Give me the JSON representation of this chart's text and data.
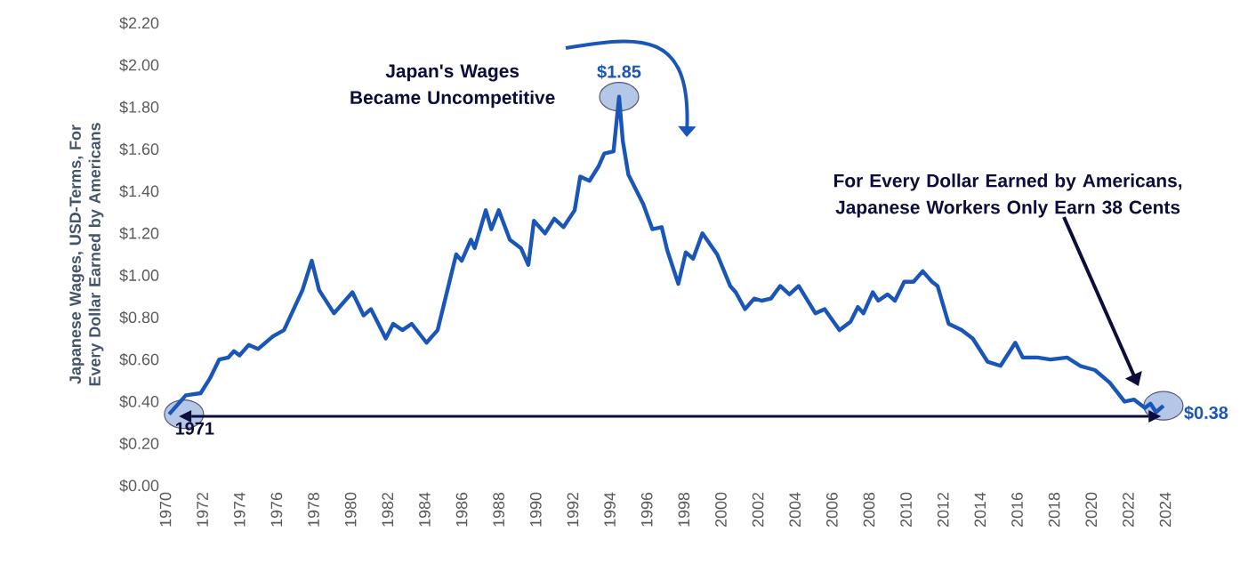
{
  "chart_data": {
    "type": "line",
    "ylabel": "Japanese Wages, USD-Terms, For Every Dollar Earned by Americans",
    "x": [
      1970.2,
      1971.1,
      1971.9,
      1972.4,
      1972.9,
      1973.4,
      1973.7,
      1974.0,
      1974.5,
      1975.0,
      1975.8,
      1976.4,
      1977.4,
      1977.9,
      1978.3,
      1979.1,
      1980.1,
      1980.7,
      1981.1,
      1981.9,
      1982.3,
      1982.8,
      1983.3,
      1984.1,
      1984.7,
      1985.7,
      1986.0,
      1986.5,
      1986.7,
      1987.3,
      1987.6,
      1988.0,
      1988.6,
      1989.2,
      1989.6,
      1989.9,
      1990.5,
      1991.0,
      1991.5,
      1992.1,
      1992.4,
      1992.9,
      1993.4,
      1993.7,
      1994.2,
      1994.5,
      1994.7,
      1995.0,
      1995.8,
      1996.3,
      1996.8,
      1997.1,
      1997.7,
      1998.1,
      1998.5,
      1999.0,
      1999.8,
      2000.5,
      2000.8,
      2001.3,
      2001.8,
      2002.2,
      2002.7,
      2003.2,
      2003.7,
      2004.2,
      2005.1,
      2005.6,
      2006.4,
      2007.0,
      2007.4,
      2007.7,
      2008.2,
      2008.5,
      2009.0,
      2009.4,
      2009.9,
      2010.4,
      2010.9,
      2011.4,
      2011.7,
      2012.3,
      2013.0,
      2013.6,
      2014.4,
      2015.1,
      2015.9,
      2016.3,
      2017.1,
      2017.8,
      2018.7,
      2019.4,
      2020.2,
      2021.0,
      2021.8,
      2022.3,
      2022.9,
      2023.2,
      2023.5,
      2023.9
    ],
    "series": [
      {
        "color": "#1a56b8",
        "values": [
          0.34,
          0.43,
          0.44,
          0.51,
          0.6,
          0.61,
          0.64,
          0.62,
          0.67,
          0.65,
          0.71,
          0.74,
          0.93,
          1.07,
          0.93,
          0.82,
          0.92,
          0.81,
          0.84,
          0.7,
          0.77,
          0.74,
          0.77,
          0.68,
          0.74,
          1.1,
          1.07,
          1.17,
          1.13,
          1.31,
          1.22,
          1.31,
          1.17,
          1.13,
          1.05,
          1.26,
          1.2,
          1.27,
          1.23,
          1.31,
          1.47,
          1.45,
          1.52,
          1.58,
          1.59,
          1.85,
          1.64,
          1.48,
          1.34,
          1.22,
          1.23,
          1.12,
          0.96,
          1.11,
          1.08,
          1.2,
          1.1,
          0.95,
          0.92,
          0.84,
          0.89,
          0.88,
          0.89,
          0.95,
          0.91,
          0.95,
          0.82,
          0.84,
          0.74,
          0.78,
          0.85,
          0.82,
          0.92,
          0.88,
          0.91,
          0.88,
          0.97,
          0.97,
          1.02,
          0.97,
          0.95,
          0.77,
          0.74,
          0.7,
          0.59,
          0.57,
          0.68,
          0.61,
          0.61,
          0.6,
          0.61,
          0.57,
          0.55,
          0.49,
          0.4,
          0.41,
          0.37,
          0.39,
          0.35,
          0.38
        ]
      },
      {
        "type": "line",
        "color": "#0d0d3b",
        "marker": "triangle",
        "x": [
          1971.4,
          2023.1
        ],
        "values": [
          0.33,
          0.33
        ]
      }
    ],
    "xlim": [
      1970,
      2024
    ],
    "xticks": [
      1970,
      1972,
      1974,
      1976,
      1978,
      1980,
      1982,
      1984,
      1986,
      1988,
      1990,
      1992,
      1994,
      1996,
      1998,
      2000,
      2002,
      2004,
      2006,
      2008,
      2010,
      2012,
      2014,
      2016,
      2018,
      2020,
      2022,
      2024
    ],
    "ylim": [
      0,
      2.2
    ],
    "yticks": [
      {
        "value": 0,
        "label": "$0.00"
      },
      {
        "value": 0.2,
        "label": "$0.20"
      },
      {
        "value": 0.4,
        "label": "$0.40"
      },
      {
        "value": 0.6,
        "label": "$0.60"
      },
      {
        "value": 0.8,
        "label": "$0.80"
      },
      {
        "value": 1.0,
        "label": "$1.00"
      },
      {
        "value": 1.2,
        "label": "$1.20"
      },
      {
        "value": 1.4,
        "label": "$1.40"
      },
      {
        "value": 1.6,
        "label": "$1.60"
      },
      {
        "value": 1.8,
        "label": "$1.80"
      },
      {
        "value": 2.0,
        "label": "$2.00"
      },
      {
        "value": 2.2,
        "label": "$2.20"
      }
    ],
    "annotations": [
      {
        "text": "1971",
        "x": 1971,
        "y": 0.34
      },
      {
        "text": "$1.85",
        "x": 1994.5,
        "y": 1.85
      },
      {
        "text": "$0.38",
        "x": 2023.9,
        "y": 0.38
      },
      "Japan's Wages Became Uncompetitive",
      "For Every Dollar Earned by Americans, Japanese Workers Only Earn 38 Cents"
    ],
    "grid": false,
    "marker": "none",
    "line_style": "solid"
  }
}
